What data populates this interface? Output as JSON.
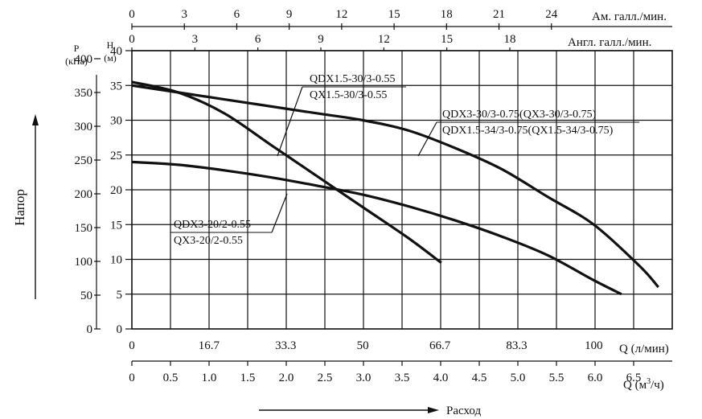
{
  "chart_data": {
    "type": "line",
    "ylabel_rotated": "Напор",
    "xlabel_arrow": "Расход",
    "axes": {
      "head": {
        "label_line1": "H",
        "label_line2": "(м)",
        "min": 0,
        "max": 40,
        "ticks": [
          0,
          5,
          10,
          15,
          20,
          25,
          30,
          35,
          40
        ]
      },
      "pressure": {
        "label_line1": "P",
        "label_line2": "(кПа)",
        "min": 0,
        "max": 400,
        "ticks": [
          0,
          50,
          100,
          150,
          200,
          250,
          300,
          350,
          400
        ]
      },
      "flow_lpm": {
        "label": "Q (л/мин)",
        "min": 0,
        "max": 117,
        "ticks": [
          0,
          16.7,
          33.3,
          50,
          66.7,
          83.3,
          100
        ],
        "tick_labels": [
          "0",
          "16.7",
          "33.3",
          "50",
          "66.7",
          "83.3",
          "100"
        ]
      },
      "flow_m3h": {
        "label": "Q (м",
        "label_sup": "3",
        "label_tail": "/ч)",
        "min": 0,
        "max": 7.0,
        "ticks": [
          0,
          0.5,
          1.0,
          1.5,
          2.0,
          2.5,
          3.0,
          3.5,
          4.0,
          4.5,
          5.0,
          5.5,
          6.0,
          6.5
        ],
        "tick_labels": [
          "0",
          "0.5",
          "1.0",
          "1.5",
          "2.0",
          "2.5",
          "3.0",
          "3.5",
          "4.0",
          "4.5",
          "5.0",
          "5.5",
          "6.0",
          "6.5"
        ]
      },
      "us_gpm": {
        "label": "Ам. галл./мин.",
        "ticks": [
          0,
          3,
          6,
          9,
          12,
          15,
          18,
          21,
          24
        ],
        "tick_labels": [
          "0",
          "3",
          "6",
          "9",
          "12",
          "15",
          "18",
          "21",
          "24"
        ]
      },
      "imp_gpm": {
        "label": "Англ. галл./мин.",
        "ticks": [
          0,
          3,
          6,
          9,
          12,
          15,
          18
        ],
        "tick_labels": [
          "0",
          "3",
          "6",
          "9",
          "12",
          "15",
          "18"
        ]
      }
    },
    "grid": true,
    "series": [
      {
        "name": "QDX1.5-30/3-0.55 / QX1.5-30/3-0.55",
        "x": [
          0,
          10,
          20,
          30,
          40,
          50,
          60,
          67
        ],
        "y": [
          35.5,
          34,
          31,
          26.5,
          22,
          17.5,
          13,
          9.5
        ]
      },
      {
        "name": "QDX3-30/3-0.75(QX3-30/3-0.75) / QDX1.5-34/3-0.75(QX1.5-34/3-0.75)",
        "x": [
          0,
          20,
          40,
          50,
          60,
          70,
          80,
          90,
          100,
          110,
          114
        ],
        "y": [
          35,
          33,
          31,
          30,
          28.5,
          26,
          23,
          19,
          15,
          9,
          6
        ]
      },
      {
        "name": "QDX3-20/2-0.55 / QX3-20/2-0.55",
        "x": [
          0,
          10,
          20,
          30,
          40,
          50,
          60,
          70,
          80,
          90,
          100,
          106
        ],
        "y": [
          24,
          23.6,
          22.8,
          21.8,
          20.6,
          19.3,
          17.6,
          15.6,
          13.3,
          10.6,
          7,
          5
        ]
      }
    ],
    "annotations": [
      {
        "line1": "QDX1.5-30/3-0.55",
        "line2": "QX1.5-30/3-0.55"
      },
      {
        "line1": "QDX3-30/3-0.75(QX3-30/3-0.75)",
        "line2": "QDX1.5-34/3-0.75(QX1.5-34/3-0.75)"
      },
      {
        "line1": "QDX3-20/2-0.55",
        "line2": "QX3-20/2-0.55"
      }
    ]
  }
}
